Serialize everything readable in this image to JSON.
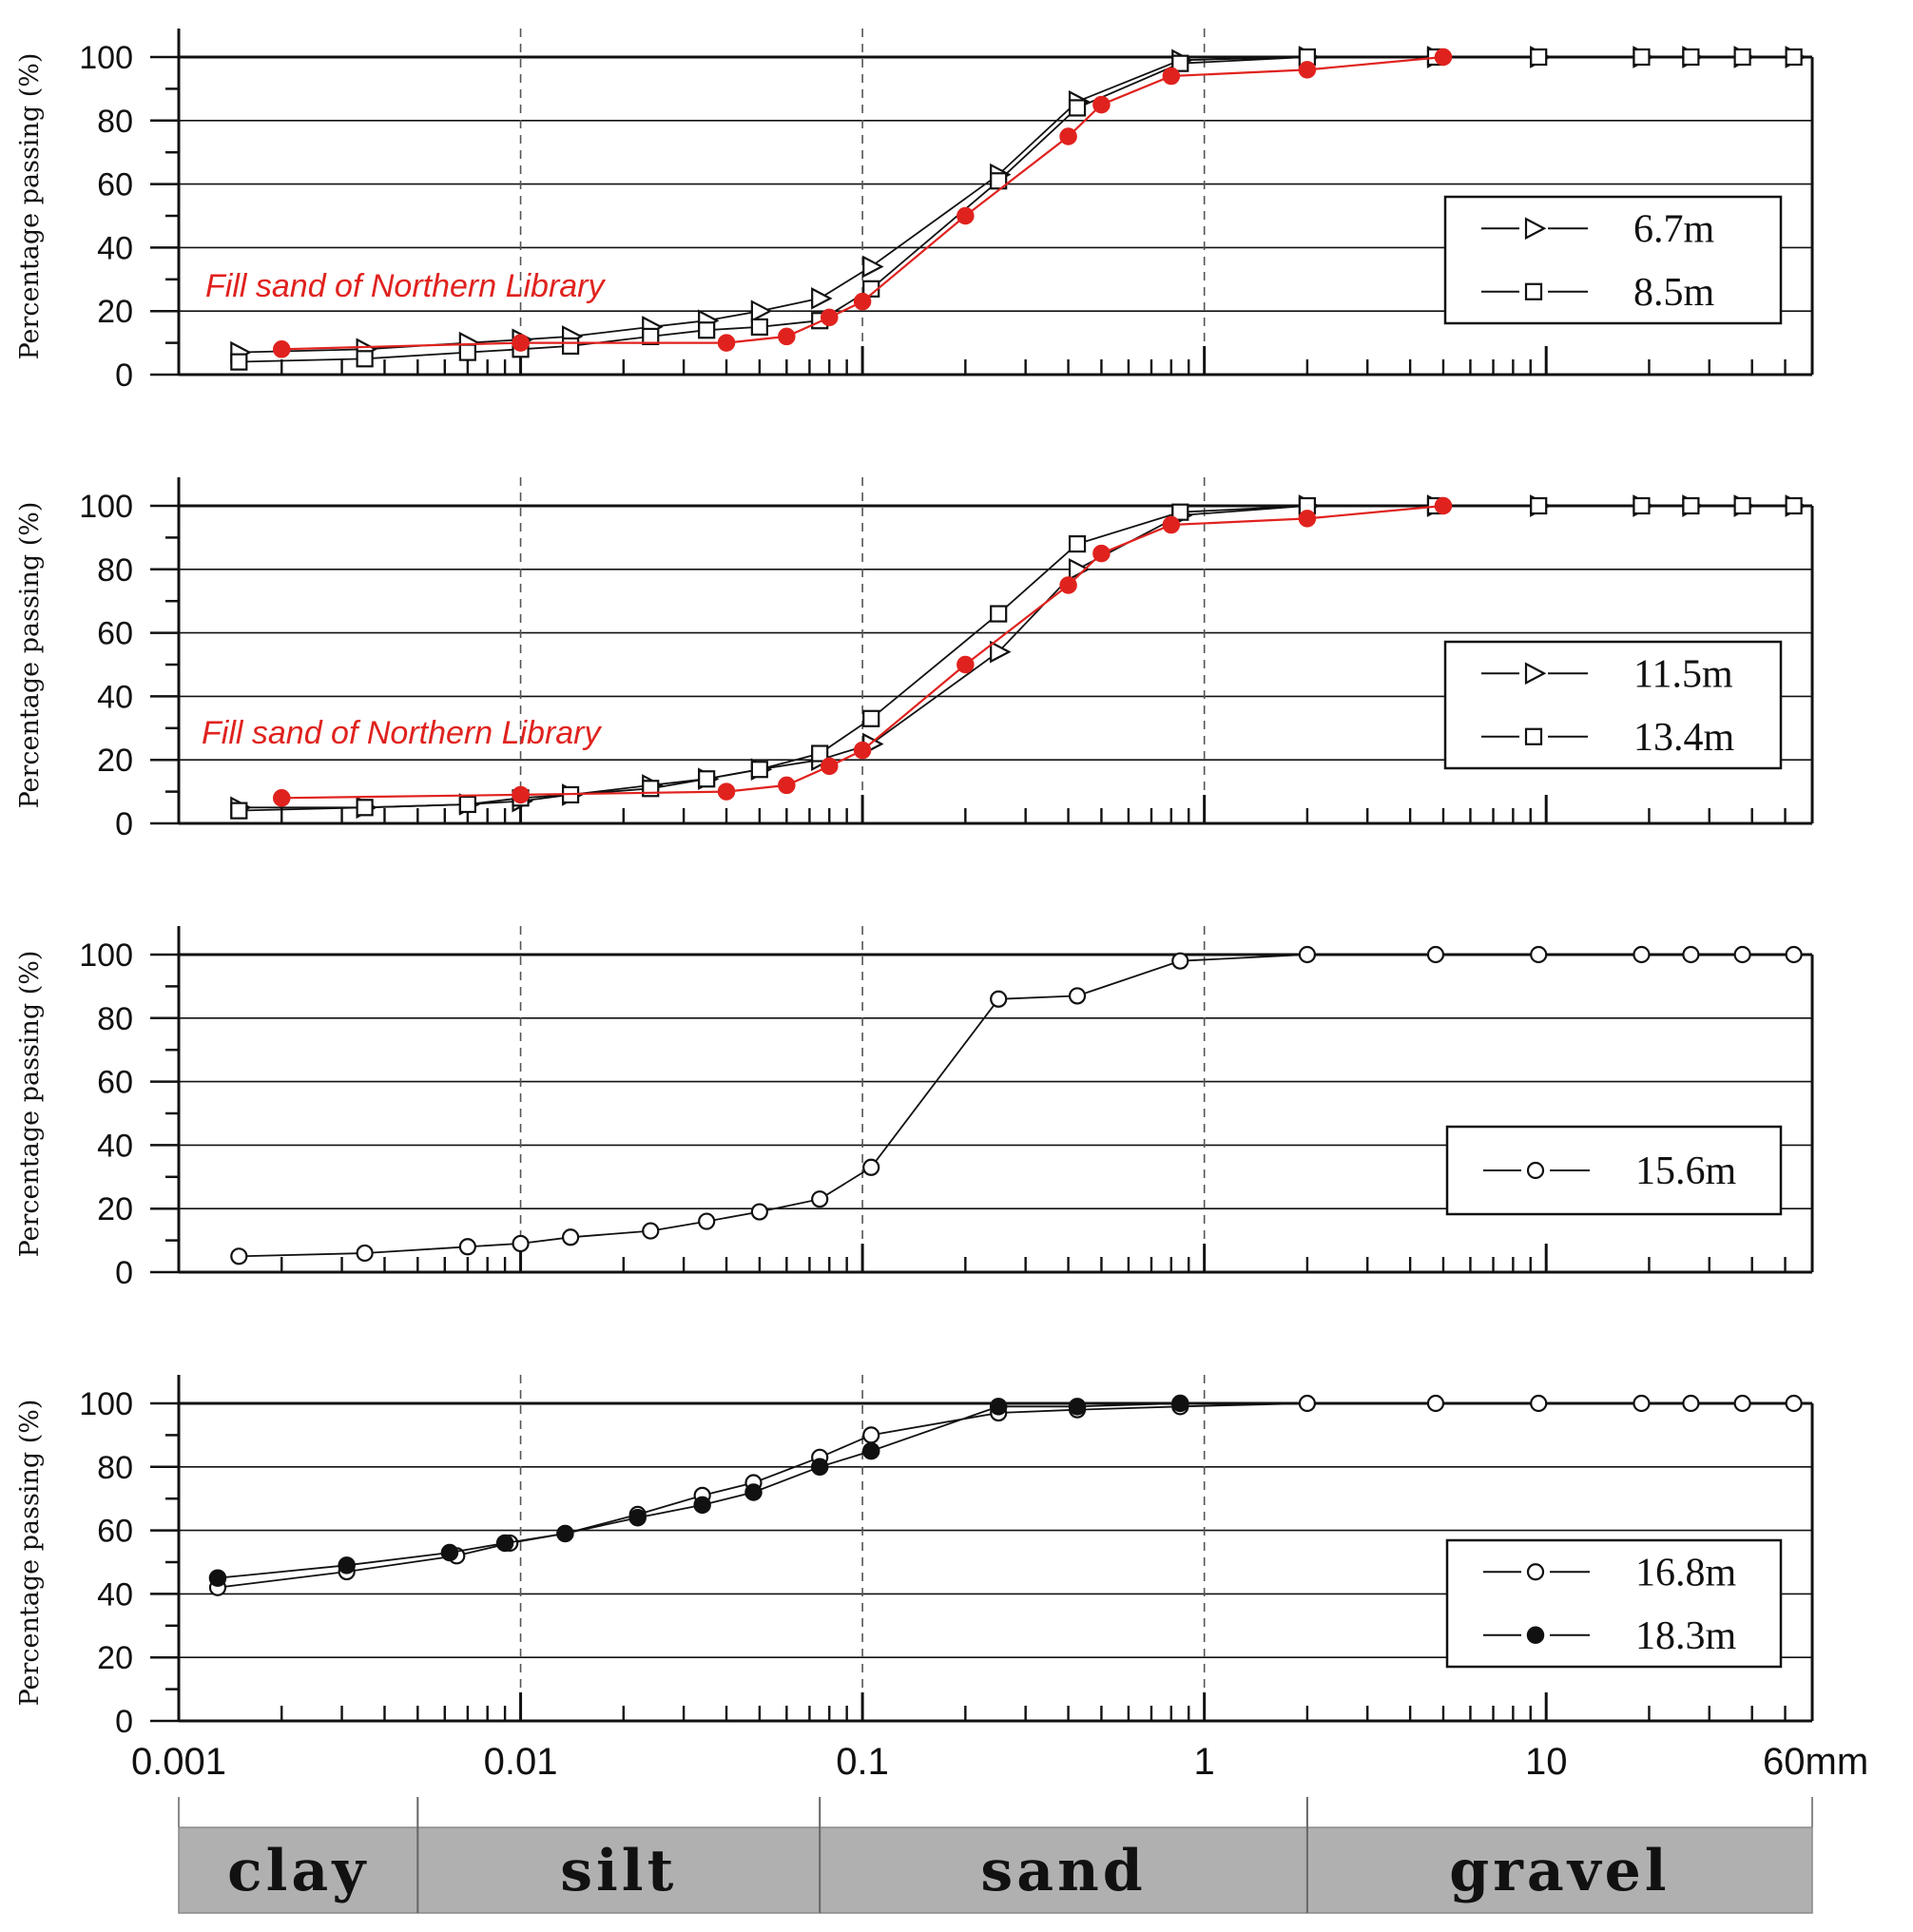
{
  "figure": {
    "x_tick_labels": [
      "0.001",
      "0.01",
      "0.1",
      "1",
      "10",
      "60mm"
    ],
    "soil_zones": [
      "clay",
      "silt",
      "sand",
      "gravel"
    ],
    "colors": {
      "red_series": "#e0221e",
      "zone_fill": "#b0b0b0",
      "line": "#111111"
    }
  },
  "chart_data": [
    {
      "type": "line",
      "ylabel": "Percentage passing (%)",
      "xscale": "log",
      "xlim": [
        0.001,
        60
      ],
      "ylim": [
        0,
        100
      ],
      "yticks": [
        0,
        20,
        40,
        60,
        80,
        100
      ],
      "grid": "horizontal",
      "annotation": "Fill sand of Northern Library",
      "legend_position": "right",
      "series": [
        {
          "name": "6.7m",
          "marker": "triangle-open",
          "color": "#111111",
          "x": [
            0.0015,
            0.0035,
            0.007,
            0.01,
            0.014,
            0.024,
            0.035,
            0.05,
            0.075,
            0.106,
            0.25,
            0.425,
            0.85,
            2,
            4.75,
            9.5,
            19,
            26.5,
            37.5,
            53
          ],
          "y": [
            7,
            8,
            10,
            11,
            12,
            15,
            17,
            20,
            24,
            34,
            63,
            86,
            99,
            100,
            100,
            100,
            100,
            100,
            100,
            100
          ]
        },
        {
          "name": "8.5m",
          "marker": "square-open",
          "color": "#111111",
          "x": [
            0.0015,
            0.0035,
            0.007,
            0.01,
            0.014,
            0.024,
            0.035,
            0.05,
            0.075,
            0.106,
            0.25,
            0.425,
            0.85,
            2,
            4.75,
            9.5,
            19,
            26.5,
            37.5,
            53
          ],
          "y": [
            4,
            5,
            7,
            8,
            9,
            12,
            14,
            15,
            17,
            27,
            61,
            84,
            98,
            100,
            100,
            100,
            100,
            100,
            100,
            100
          ]
        },
        {
          "name": "",
          "marker": "circle-filled",
          "color": "#e0221e",
          "x": [
            0.002,
            0.01,
            0.04,
            0.06,
            0.08,
            0.1,
            0.2,
            0.4,
            0.5,
            0.8,
            2,
            5
          ],
          "y": [
            8,
            10,
            10,
            12,
            18,
            23,
            50,
            75,
            85,
            94,
            96,
            100
          ]
        }
      ]
    },
    {
      "type": "line",
      "ylabel": "Percentage passing (%)",
      "xscale": "log",
      "xlim": [
        0.001,
        60
      ],
      "ylim": [
        0,
        100
      ],
      "yticks": [
        0,
        20,
        40,
        60,
        80,
        100
      ],
      "grid": "horizontal",
      "annotation": "Fill sand of Northern Library",
      "legend_position": "right",
      "series": [
        {
          "name": "11.5m",
          "marker": "triangle-open",
          "color": "#111111",
          "x": [
            0.0015,
            0.0035,
            0.007,
            0.01,
            0.014,
            0.024,
            0.035,
            0.05,
            0.075,
            0.106,
            0.25,
            0.425,
            0.85,
            2,
            4.75,
            9.5,
            19,
            26.5,
            37.5,
            53
          ],
          "y": [
            5,
            5,
            6,
            7,
            9,
            12,
            14,
            17,
            20,
            25,
            54,
            80,
            97,
            100,
            100,
            100,
            100,
            100,
            100,
            100
          ]
        },
        {
          "name": "13.4m",
          "marker": "square-open",
          "color": "#111111",
          "x": [
            0.0015,
            0.0035,
            0.007,
            0.01,
            0.014,
            0.024,
            0.035,
            0.05,
            0.075,
            0.106,
            0.25,
            0.425,
            0.85,
            2,
            4.75,
            9.5,
            19,
            26.5,
            37.5,
            53
          ],
          "y": [
            4,
            5,
            6,
            8,
            9,
            11,
            14,
            17,
            22,
            33,
            66,
            88,
            98,
            100,
            100,
            100,
            100,
            100,
            100,
            100
          ]
        },
        {
          "name": "",
          "marker": "circle-filled",
          "color": "#e0221e",
          "x": [
            0.002,
            0.01,
            0.04,
            0.06,
            0.08,
            0.1,
            0.2,
            0.4,
            0.5,
            0.8,
            2,
            5
          ],
          "y": [
            8,
            9,
            10,
            12,
            18,
            23,
            50,
            75,
            85,
            94,
            96,
            100
          ]
        }
      ]
    },
    {
      "type": "line",
      "ylabel": "Percentage passing (%)",
      "xscale": "log",
      "xlim": [
        0.001,
        60
      ],
      "ylim": [
        0,
        100
      ],
      "yticks": [
        0,
        20,
        40,
        60,
        80,
        100
      ],
      "grid": "horizontal",
      "legend_position": "right",
      "series": [
        {
          "name": "15.6m",
          "marker": "circle-open",
          "color": "#111111",
          "x": [
            0.0015,
            0.0035,
            0.007,
            0.01,
            0.014,
            0.024,
            0.035,
            0.05,
            0.075,
            0.106,
            0.25,
            0.425,
            0.85,
            2,
            4.75,
            9.5,
            19,
            26.5,
            37.5,
            53
          ],
          "y": [
            5,
            6,
            8,
            9,
            11,
            13,
            16,
            19,
            23,
            33,
            86,
            87,
            98,
            100,
            100,
            100,
            100,
            100,
            100,
            100
          ]
        }
      ]
    },
    {
      "type": "line",
      "ylabel": "Percentage passing (%)",
      "xscale": "log",
      "xlim": [
        0.001,
        60
      ],
      "ylim": [
        0,
        100
      ],
      "yticks": [
        0,
        20,
        40,
        60,
        80,
        100
      ],
      "grid": "horizontal",
      "legend_position": "right",
      "series": [
        {
          "name": "16.8m",
          "marker": "circle-open",
          "color": "#111111",
          "x": [
            0.0013,
            0.0031,
            0.0065,
            0.0093,
            0.0135,
            0.022,
            0.034,
            0.048,
            0.075,
            0.106,
            0.25,
            0.425,
            0.85,
            2,
            4.75,
            9.5,
            19,
            26.5,
            37.5,
            53
          ],
          "y": [
            42,
            47,
            52,
            56,
            59,
            65,
            71,
            75,
            83,
            90,
            97,
            98,
            99,
            100,
            100,
            100,
            100,
            100,
            100,
            100
          ]
        },
        {
          "name": "18.3m",
          "marker": "circle-filled",
          "color": "#111111",
          "x": [
            0.0013,
            0.0031,
            0.0062,
            0.009,
            0.0135,
            0.022,
            0.034,
            0.048,
            0.075,
            0.106,
            0.25,
            0.425,
            0.85
          ],
          "y": [
            45,
            49,
            53,
            56,
            59,
            64,
            68,
            72,
            80,
            85,
            99,
            99,
            100
          ]
        }
      ]
    }
  ]
}
